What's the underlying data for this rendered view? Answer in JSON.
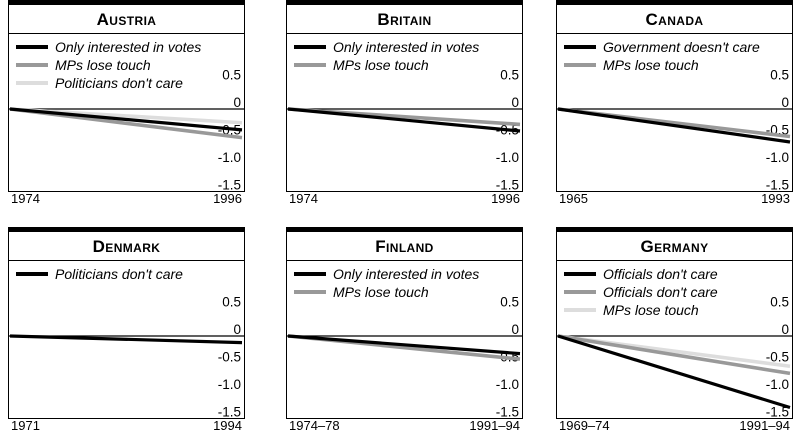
{
  "chart_data": [
    {
      "type": "line",
      "title": "Austria",
      "x": [
        "1974",
        "1996"
      ],
      "series": [
        {
          "name": "Only interested in votes",
          "color": "#000000",
          "values": [
            0,
            -0.38
          ]
        },
        {
          "name": "MPs lose touch",
          "color": "#999999",
          "values": [
            0,
            -0.52
          ]
        },
        {
          "name": "Politicians don't care",
          "color": "#dddddd",
          "values": [
            0,
            -0.25
          ]
        }
      ],
      "yticks": [
        "0.5",
        "0",
        "-0.5",
        "-1.0",
        "-1.5"
      ],
      "ylim": [
        -1.5,
        0.9
      ]
    },
    {
      "type": "line",
      "title": "Britain",
      "x": [
        "1974",
        "1996"
      ],
      "series": [
        {
          "name": "Only interested in votes",
          "color": "#000000",
          "values": [
            0,
            -0.4
          ]
        },
        {
          "name": "MPs lose touch",
          "color": "#999999",
          "values": [
            0,
            -0.28
          ]
        }
      ],
      "yticks": [
        "0.5",
        "0",
        "-0.5",
        "-1.0",
        "-1.5"
      ],
      "ylim": [
        -1.5,
        0.9
      ]
    },
    {
      "type": "line",
      "title": "Canada",
      "x": [
        "1965",
        "1993"
      ],
      "series": [
        {
          "name": "Government doesn't care",
          "color": "#000000",
          "values": [
            0,
            -0.6
          ]
        },
        {
          "name": "MPs lose touch",
          "color": "#999999",
          "values": [
            0,
            -0.5
          ]
        }
      ],
      "yticks": [
        "0.5",
        "0",
        "-0.5",
        "-1.0",
        "-1.5"
      ],
      "ylim": [
        -1.5,
        0.9
      ]
    },
    {
      "type": "line",
      "title": "Denmark",
      "x": [
        "1971",
        "1994"
      ],
      "series": [
        {
          "name": "Politicians don't care",
          "color": "#000000",
          "values": [
            0,
            -0.12
          ]
        }
      ],
      "yticks": [
        "0.5",
        "0",
        "-0.5",
        "-1.0",
        "-1.5"
      ],
      "ylim": [
        -1.5,
        0.9
      ]
    },
    {
      "type": "line",
      "title": "Finland",
      "x": [
        "1974–78",
        "1991–94"
      ],
      "series": [
        {
          "name": "Only interested in votes",
          "color": "#000000",
          "values": [
            0,
            -0.32
          ]
        },
        {
          "name": "MPs lose touch",
          "color": "#999999",
          "values": [
            0,
            -0.42
          ]
        }
      ],
      "yticks": [
        "0.5",
        "0",
        "-0.5",
        "-1.0",
        "-1.5"
      ],
      "ylim": [
        -1.5,
        0.9
      ]
    },
    {
      "type": "line",
      "title": "Germany",
      "x": [
        "1969–74",
        "1991–94"
      ],
      "series": [
        {
          "name": "Officials don't care",
          "color": "#000000",
          "values": [
            0,
            -1.3
          ]
        },
        {
          "name": "Officials don't care",
          "color": "#999999",
          "values": [
            0,
            -0.68
          ]
        },
        {
          "name": "MPs lose touch",
          "color": "#dddddd",
          "values": [
            0,
            -0.55
          ]
        }
      ],
      "yticks": [
        "0.5",
        "0",
        "-0.5",
        "-1.0",
        "-1.5"
      ],
      "ylim": [
        -1.5,
        0.9
      ]
    }
  ]
}
